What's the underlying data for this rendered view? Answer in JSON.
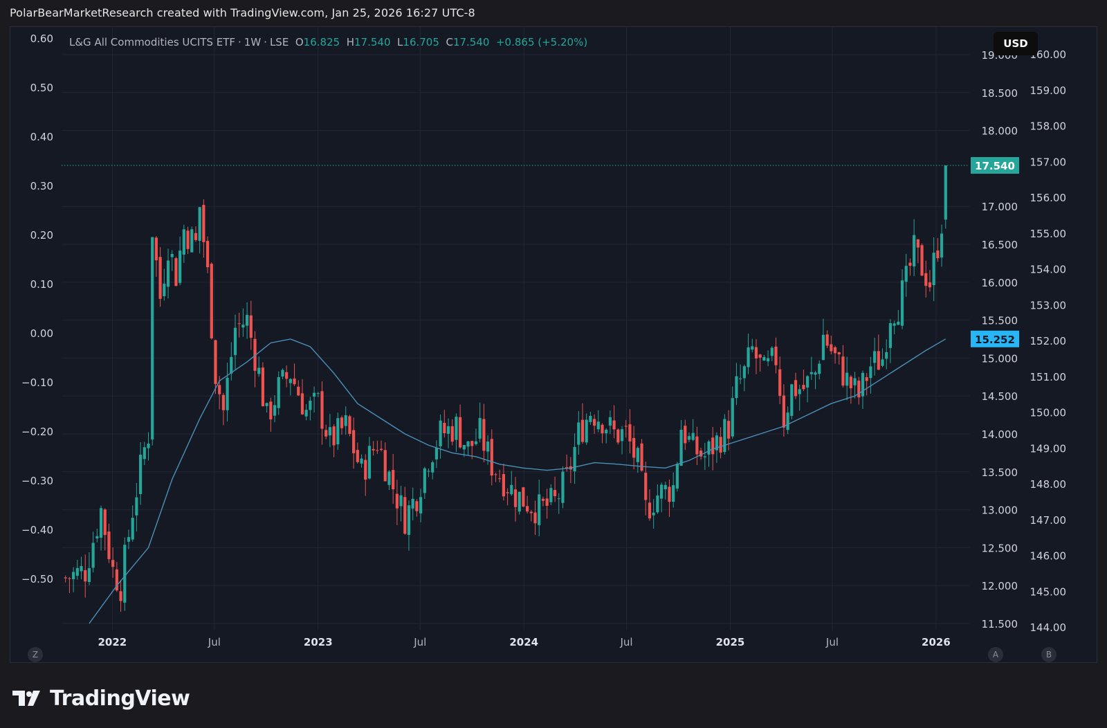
{
  "header": {
    "caption": "PolarBearMarketResearch created with TradingView.com, Jan 25, 2026 16:27 UTC-8"
  },
  "legend": {
    "symbol": "L&G All Commodities UCITS ETF",
    "interval": "1W",
    "exchange": "LSE",
    "open_label": "O",
    "open": "16.825",
    "high_label": "H",
    "high": "17.540",
    "low_label": "L",
    "low": "16.705",
    "close_label": "C",
    "close": "17.540",
    "change": "+0.865 (+5.20%)"
  },
  "toolbar": {
    "currency": "USD"
  },
  "scale_buttons": {
    "z": "Z",
    "a": "A",
    "b": "B"
  },
  "brand": {
    "name": "TradingView"
  },
  "colors": {
    "background": "#151924",
    "up": "#26a69a",
    "down": "#ef5350",
    "ma": "#4a90b8",
    "last_price_tag": "#26a69a",
    "ma_tag": "#29b6f6",
    "grid": "#232734"
  },
  "chart_data": {
    "type": "candlestick",
    "title": "L&G All Commodities UCITS ETF · 1W · LSE",
    "x_ticks": [
      "2022",
      "Jul",
      "2023",
      "Jul",
      "2024",
      "Jul",
      "2025",
      "Jul",
      "2026"
    ],
    "y_axis_price": {
      "labels": [
        "19.000",
        "18.500",
        "18.000",
        "17.000",
        "16.500",
        "16.000",
        "15.500",
        "15.000",
        "14.500",
        "14.000",
        "13.500",
        "13.000",
        "12.500",
        "12.000",
        "11.500"
      ],
      "range": [
        11.5,
        19.0
      ]
    },
    "y_axis_left": {
      "labels": [
        "0.60",
        "0.50",
        "0.40",
        "0.30",
        "0.20",
        "0.10",
        "0.00",
        "−0.10",
        "−0.20",
        "−0.30",
        "−0.40",
        "−0.50"
      ]
    },
    "y_axis_far_right": {
      "labels": [
        "160.00",
        "159.00",
        "158.00",
        "157.00",
        "156.00",
        "155.00",
        "154.00",
        "153.00",
        "152.00",
        "151.00",
        "150.00",
        "149.00",
        "148.00",
        "147.00",
        "146.00",
        "145.00",
        "144.00"
      ]
    },
    "last_price": 17.54,
    "last_price_label": "17.540",
    "moving_average_last": 15.252,
    "moving_average_label": "15.252",
    "weekly_close_path": [
      [
        "2021-10-10",
        12.1
      ],
      [
        "2021-11-14",
        12.2
      ],
      [
        "2021-12-12",
        13.0
      ],
      [
        "2022-01-02",
        12.2
      ],
      [
        "2022-01-16",
        12.0
      ],
      [
        "2022-02-06",
        13.0
      ],
      [
        "2022-02-27",
        13.8
      ],
      [
        "2022-03-06",
        14.0
      ],
      [
        "2022-03-13",
        16.7
      ],
      [
        "2022-03-27",
        15.8
      ],
      [
        "2022-04-10",
        16.5
      ],
      [
        "2022-04-24",
        16.1
      ],
      [
        "2022-05-08",
        16.7
      ],
      [
        "2022-05-29",
        16.5
      ],
      [
        "2022-06-05",
        17.0
      ],
      [
        "2022-06-19",
        16.1
      ],
      [
        "2022-07-03",
        14.8
      ],
      [
        "2022-07-17",
        14.3
      ],
      [
        "2022-08-07",
        15.4
      ],
      [
        "2022-08-28",
        15.5
      ],
      [
        "2022-09-18",
        14.8
      ],
      [
        "2022-10-02",
        14.2
      ],
      [
        "2022-10-23",
        14.6
      ],
      [
        "2022-11-13",
        14.8
      ],
      [
        "2022-12-11",
        14.3
      ],
      [
        "2023-01-01",
        14.4
      ],
      [
        "2023-01-22",
        13.9
      ],
      [
        "2023-02-19",
        14.1
      ],
      [
        "2023-03-19",
        13.5
      ],
      [
        "2023-04-16",
        13.9
      ],
      [
        "2023-05-14",
        13.3
      ],
      [
        "2023-06-04",
        12.9
      ],
      [
        "2023-06-25",
        13.2
      ],
      [
        "2023-07-16",
        13.7
      ],
      [
        "2023-08-06",
        14.0
      ],
      [
        "2023-09-03",
        14.1
      ],
      [
        "2023-09-24",
        13.8
      ],
      [
        "2023-10-15",
        14.0
      ],
      [
        "2023-11-05",
        13.6
      ],
      [
        "2023-11-26",
        13.4
      ],
      [
        "2023-12-17",
        13.2
      ],
      [
        "2024-01-07",
        13.1
      ],
      [
        "2024-01-28",
        13.0
      ],
      [
        "2024-02-25",
        13.1
      ],
      [
        "2024-03-17",
        13.4
      ],
      [
        "2024-04-07",
        14.0
      ],
      [
        "2024-04-28",
        14.3
      ],
      [
        "2024-05-19",
        14.2
      ],
      [
        "2024-06-09",
        14.0
      ],
      [
        "2024-06-30",
        14.0
      ],
      [
        "2024-07-21",
        13.6
      ],
      [
        "2024-08-04",
        13.0
      ],
      [
        "2024-08-25",
        13.2
      ],
      [
        "2024-09-22",
        13.3
      ],
      [
        "2024-10-06",
        14.1
      ],
      [
        "2024-10-27",
        13.8
      ],
      [
        "2024-11-17",
        13.7
      ],
      [
        "2024-12-08",
        13.9
      ],
      [
        "2024-12-29",
        14.1
      ],
      [
        "2025-01-12",
        14.6
      ],
      [
        "2025-01-26",
        14.8
      ],
      [
        "2025-02-09",
        15.1
      ],
      [
        "2025-03-02",
        14.8
      ],
      [
        "2025-03-23",
        15.0
      ],
      [
        "2025-04-06",
        14.2
      ],
      [
        "2025-04-20",
        14.6
      ],
      [
        "2025-05-11",
        14.6
      ],
      [
        "2025-06-01",
        14.8
      ],
      [
        "2025-06-15",
        15.3
      ],
      [
        "2025-07-06",
        15.0
      ],
      [
        "2025-07-27",
        14.7
      ],
      [
        "2025-08-17",
        14.5
      ],
      [
        "2025-09-07",
        14.9
      ],
      [
        "2025-09-28",
        15.0
      ],
      [
        "2025-10-12",
        15.6
      ],
      [
        "2025-10-26",
        15.7
      ],
      [
        "2025-11-09",
        16.0
      ],
      [
        "2025-11-23",
        16.4
      ],
      [
        "2025-12-07",
        16.2
      ],
      [
        "2025-12-21",
        16.0
      ],
      [
        "2026-01-04",
        16.5
      ],
      [
        "2026-01-11",
        16.8
      ],
      [
        "2026-01-18",
        17.54
      ]
    ],
    "moving_average_path": [
      [
        "2021-11-21",
        11.5
      ],
      [
        "2022-01-09",
        12.0
      ],
      [
        "2022-03-06",
        12.5
      ],
      [
        "2022-04-17",
        13.4
      ],
      [
        "2022-06-05",
        14.2
      ],
      [
        "2022-07-10",
        14.7
      ],
      [
        "2022-08-28",
        14.95
      ],
      [
        "2022-10-09",
        15.2
      ],
      [
        "2022-11-13",
        15.25
      ],
      [
        "2022-12-18",
        15.15
      ],
      [
        "2023-01-29",
        14.8
      ],
      [
        "2023-03-12",
        14.4
      ],
      [
        "2023-04-23",
        14.2
      ],
      [
        "2023-06-04",
        14.0
      ],
      [
        "2023-07-16",
        13.85
      ],
      [
        "2023-08-27",
        13.75
      ],
      [
        "2023-10-08",
        13.7
      ],
      [
        "2023-11-19",
        13.6
      ],
      [
        "2023-12-31",
        13.55
      ],
      [
        "2024-02-11",
        13.52
      ],
      [
        "2024-03-24",
        13.55
      ],
      [
        "2024-05-05",
        13.62
      ],
      [
        "2024-06-16",
        13.6
      ],
      [
        "2024-07-28",
        13.57
      ],
      [
        "2024-09-08",
        13.55
      ],
      [
        "2024-10-20",
        13.65
      ],
      [
        "2024-12-01",
        13.8
      ],
      [
        "2025-01-12",
        13.9
      ],
      [
        "2025-02-23",
        14.0
      ],
      [
        "2025-04-06",
        14.1
      ],
      [
        "2025-05-18",
        14.25
      ],
      [
        "2025-06-29",
        14.4
      ],
      [
        "2025-08-10",
        14.5
      ],
      [
        "2025-09-21",
        14.7
      ],
      [
        "2025-11-02",
        14.9
      ],
      [
        "2025-12-14",
        15.1
      ],
      [
        "2026-01-18",
        15.252
      ]
    ]
  }
}
